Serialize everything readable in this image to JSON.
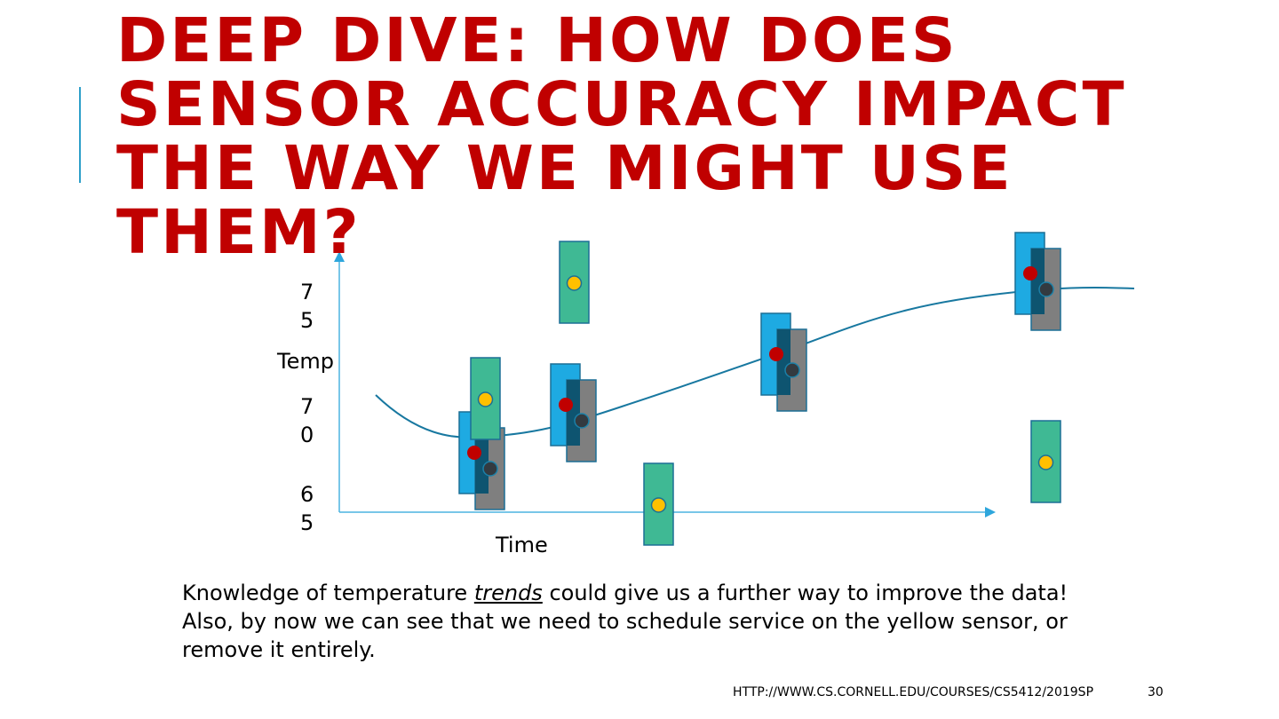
{
  "slide": {
    "title_lines": [
      "Deep dive: How does",
      "sensor accuracy impact",
      "the way we might use",
      "them?"
    ],
    "accent_color": "#c00000",
    "diagram": {
      "y_axis_label": "Temp",
      "x_axis_label": "Time",
      "y_ticks": [
        {
          "top": "7",
          "bottom": "5"
        },
        {
          "top": "7",
          "bottom": "0"
        },
        {
          "top": "6",
          "bottom": "5"
        }
      ],
      "colors": {
        "blue_sensor": "#1eaae2",
        "gray_sensor": "#7f7f7f",
        "yellow_sensor_box": "#3fb994",
        "red_dot": "#c00000",
        "yellow_dot": "#ffc000",
        "trend_line": "#1878a0"
      }
    },
    "body": {
      "before": "Knowledge of temperature ",
      "emphasis": "trends",
      "after": " could give us a further way to improve the data!  Also, by now we can see that we need to schedule service on the yellow sensor, or remove it entirely."
    },
    "footer": {
      "url": "HTTP://WWW.CS.CORNELL.EDU/COURSES/CS5412/2019SP",
      "page": "30"
    }
  }
}
